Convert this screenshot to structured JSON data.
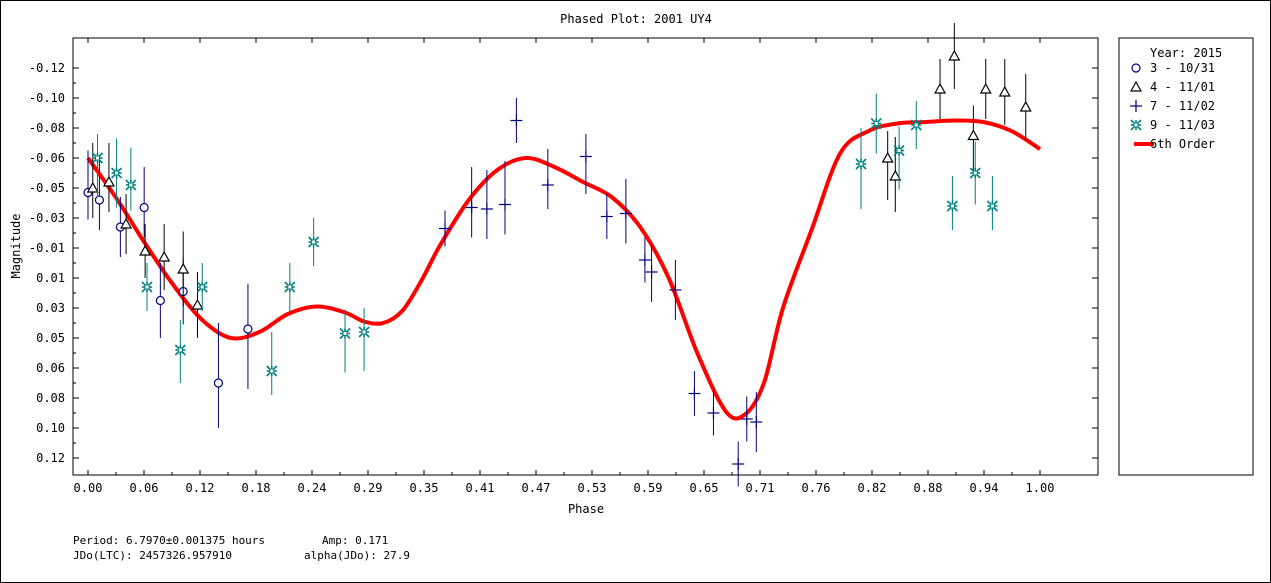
{
  "chart_data": {
    "type": "scatter",
    "title": "Phased Plot: 2001 UY4",
    "xlabel": "Phase",
    "ylabel": "Magnitude",
    "xlim": [
      -0.02,
      1.06
    ],
    "ylim": [
      0.13,
      -0.14
    ],
    "y_inverted": true,
    "x_ticks": [
      "0.00",
      "0.06",
      "0.12",
      "0.18",
      "0.24",
      "0.29",
      "0.35",
      "0.41",
      "0.47",
      "0.53",
      "0.59",
      "0.65",
      "0.71",
      "0.76",
      "0.82",
      "0.88",
      "0.94",
      "1.00"
    ],
    "y_ticks": [
      "-0.12",
      "-0.10",
      "-0.08",
      "-0.06",
      "-0.05",
      "-0.03",
      "-0.01",
      "0.01",
      "0.03",
      "0.05",
      "0.06",
      "0.08",
      "0.10",
      "0.12"
    ],
    "legend": {
      "title": "Year: 2015",
      "placement": "right-outside",
      "entries": [
        {
          "label": "3 - 10/31",
          "marker": "circle",
          "color": "#000080"
        },
        {
          "label": "4 - 11/01",
          "marker": "triangle",
          "color": "#000000"
        },
        {
          "label": "7 - 11/02",
          "marker": "plus",
          "color": "#000080"
        },
        {
          "label": "9 - 11/03",
          "marker": "asterisk",
          "color": "#008080"
        },
        {
          "label": "6th Order",
          "marker": "line",
          "color": "#ff0000"
        }
      ]
    },
    "series": [
      {
        "name": "3 - 10/31",
        "marker": "circle",
        "color": "#000080",
        "points": [
          {
            "x": 0.0,
            "y": -0.047,
            "err": 0.018
          },
          {
            "x": 0.012,
            "y": -0.042,
            "err": 0.02
          },
          {
            "x": 0.034,
            "y": -0.024,
            "err": 0.02
          },
          {
            "x": 0.059,
            "y": -0.037,
            "err": 0.02
          },
          {
            "x": 0.076,
            "y": 0.025,
            "err": 0.025
          },
          {
            "x": 0.1,
            "y": 0.019,
            "err": 0.022
          },
          {
            "x": 0.137,
            "y": 0.07,
            "err": 0.03
          },
          {
            "x": 0.168,
            "y": 0.044,
            "err": 0.03
          }
        ]
      },
      {
        "name": "4 - 11/01",
        "marker": "triangle",
        "color": "#000000",
        "points": [
          {
            "x": 0.005,
            "y": -0.05,
            "err": 0.02
          },
          {
            "x": 0.022,
            "y": -0.052,
            "err": 0.018
          },
          {
            "x": 0.04,
            "y": -0.026,
            "err": 0.02
          },
          {
            "x": 0.06,
            "y": -0.008,
            "err": 0.018
          },
          {
            "x": 0.08,
            "y": -0.004,
            "err": 0.022
          },
          {
            "x": 0.1,
            "y": 0.004,
            "err": 0.025
          },
          {
            "x": 0.115,
            "y": 0.028,
            "err": 0.022
          },
          {
            "x": 0.84,
            "y": -0.06,
            "err": 0.018
          },
          {
            "x": 0.848,
            "y": -0.054,
            "err": 0.02
          },
          {
            "x": 0.895,
            "y": -0.106,
            "err": 0.02
          },
          {
            "x": 0.91,
            "y": -0.128,
            "err": 0.022
          },
          {
            "x": 0.93,
            "y": -0.075,
            "err": 0.02
          },
          {
            "x": 0.943,
            "y": -0.106,
            "err": 0.02
          },
          {
            "x": 0.963,
            "y": -0.104,
            "err": 0.022
          },
          {
            "x": 0.985,
            "y": -0.094,
            "err": 0.022
          }
        ]
      },
      {
        "name": "7 - 11/02",
        "marker": "plus",
        "color": "#000080",
        "points": [
          {
            "x": 0.375,
            "y": -0.023,
            "err": 0.012
          },
          {
            "x": 0.403,
            "y": -0.037,
            "err": 0.02
          },
          {
            "x": 0.419,
            "y": -0.036,
            "err": 0.02
          },
          {
            "x": 0.438,
            "y": -0.039,
            "err": 0.02
          },
          {
            "x": 0.45,
            "y": -0.085,
            "err": 0.015
          },
          {
            "x": 0.483,
            "y": -0.051,
            "err": 0.015
          },
          {
            "x": 0.523,
            "y": -0.061,
            "err": 0.015
          },
          {
            "x": 0.545,
            "y": -0.031,
            "err": 0.015
          },
          {
            "x": 0.565,
            "y": -0.033,
            "err": 0.02
          },
          {
            "x": 0.585,
            "y": -0.002,
            "err": 0.015
          },
          {
            "x": 0.592,
            "y": 0.006,
            "err": 0.02
          },
          {
            "x": 0.617,
            "y": 0.018,
            "err": 0.02
          },
          {
            "x": 0.637,
            "y": 0.077,
            "err": 0.015
          },
          {
            "x": 0.657,
            "y": 0.09,
            "err": 0.015
          },
          {
            "x": 0.683,
            "y": 0.124,
            "err": 0.015
          },
          {
            "x": 0.692,
            "y": 0.094,
            "err": 0.015
          },
          {
            "x": 0.702,
            "y": 0.096,
            "err": 0.02
          }
        ]
      },
      {
        "name": "9 - 11/03",
        "marker": "asterisk",
        "color": "#008080",
        "points": [
          {
            "x": 0.01,
            "y": -0.06,
            "err": 0.016
          },
          {
            "x": 0.03,
            "y": -0.055,
            "err": 0.018
          },
          {
            "x": 0.045,
            "y": -0.051,
            "err": 0.016
          },
          {
            "x": 0.062,
            "y": 0.016,
            "err": 0.016
          },
          {
            "x": 0.097,
            "y": 0.054,
            "err": 0.016
          },
          {
            "x": 0.12,
            "y": 0.016,
            "err": 0.016
          },
          {
            "x": 0.193,
            "y": 0.062,
            "err": 0.016
          },
          {
            "x": 0.212,
            "y": 0.016,
            "err": 0.016
          },
          {
            "x": 0.237,
            "y": -0.014,
            "err": 0.016
          },
          {
            "x": 0.27,
            "y": 0.047,
            "err": 0.016
          },
          {
            "x": 0.29,
            "y": 0.046,
            "err": 0.016
          },
          {
            "x": 0.812,
            "y": -0.058,
            "err": 0.022
          },
          {
            "x": 0.828,
            "y": -0.083,
            "err": 0.02
          },
          {
            "x": 0.852,
            "y": -0.065,
            "err": 0.016
          },
          {
            "x": 0.87,
            "y": -0.082,
            "err": 0.016
          },
          {
            "x": 0.908,
            "y": -0.038,
            "err": 0.016
          },
          {
            "x": 0.932,
            "y": -0.055,
            "err": 0.016
          },
          {
            "x": 0.95,
            "y": -0.038,
            "err": 0.016
          }
        ]
      }
    ],
    "fit": {
      "name": "6th Order",
      "color": "#ff0000",
      "points": [
        [
          0.0,
          -0.06
        ],
        [
          0.03,
          -0.043
        ],
        [
          0.06,
          -0.013
        ],
        [
          0.09,
          0.015
        ],
        [
          0.12,
          0.038
        ],
        [
          0.15,
          0.05
        ],
        [
          0.18,
          0.046
        ],
        [
          0.21,
          0.034
        ],
        [
          0.24,
          0.029
        ],
        [
          0.27,
          0.033
        ],
        [
          0.29,
          0.039
        ],
        [
          0.31,
          0.04
        ],
        [
          0.33,
          0.032
        ],
        [
          0.35,
          0.012
        ],
        [
          0.37,
          -0.012
        ],
        [
          0.4,
          -0.042
        ],
        [
          0.43,
          -0.056
        ],
        [
          0.46,
          -0.06
        ],
        [
          0.49,
          -0.057
        ],
        [
          0.52,
          -0.052
        ],
        [
          0.55,
          -0.044
        ],
        [
          0.58,
          -0.024
        ],
        [
          0.61,
          0.01
        ],
        [
          0.64,
          0.055
        ],
        [
          0.67,
          0.089
        ],
        [
          0.69,
          0.091
        ],
        [
          0.71,
          0.07
        ],
        [
          0.73,
          0.03
        ],
        [
          0.76,
          -0.022
        ],
        [
          0.79,
          -0.063
        ],
        [
          0.82,
          -0.078
        ],
        [
          0.85,
          -0.083
        ],
        [
          0.88,
          -0.084
        ],
        [
          0.91,
          -0.085
        ],
        [
          0.94,
          -0.084
        ],
        [
          0.97,
          -0.078
        ],
        [
          1.0,
          -0.066
        ]
      ]
    }
  },
  "footer": {
    "period": "Period: 6.7970±0.001375 hours",
    "amp": "Amp: 0.171",
    "jdo": "JDo(LTC): 2457326.957910",
    "alpha": "alpha(JDo): 27.9"
  }
}
